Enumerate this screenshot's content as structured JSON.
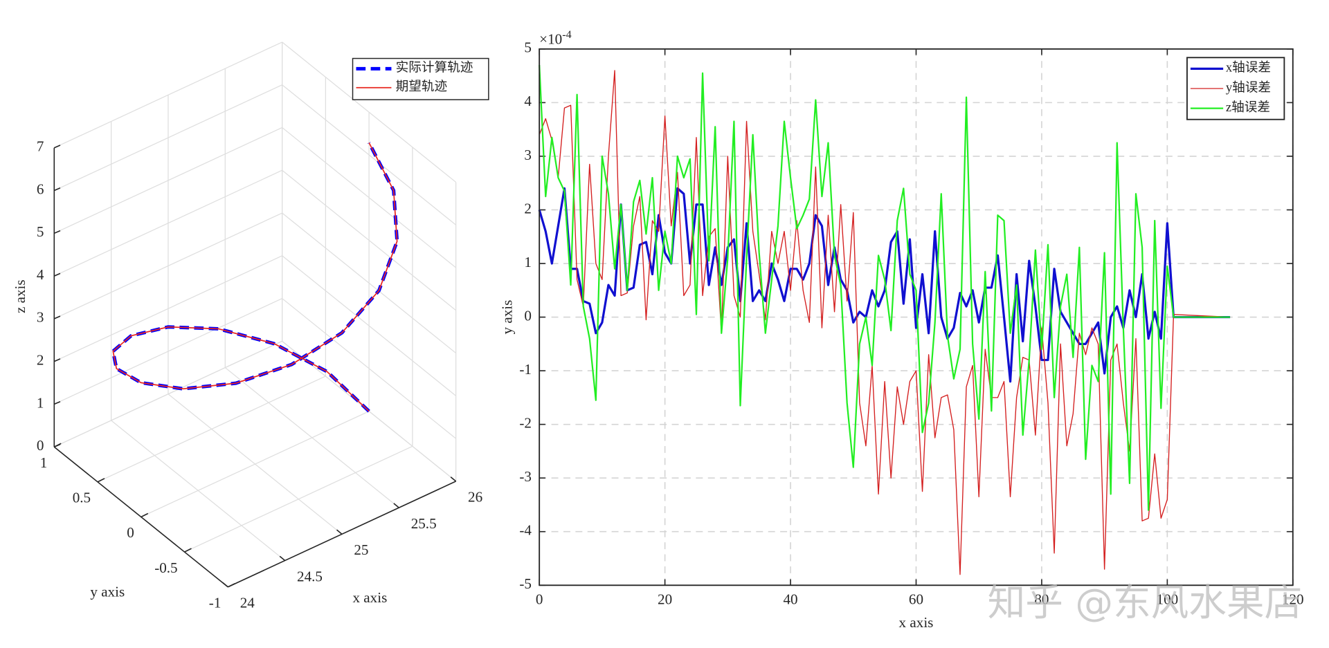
{
  "watermark": "知乎 @东风水果店",
  "chart_data": [
    {
      "type": "line3d",
      "xlabel": "x axis",
      "ylabel": "y axis",
      "zlabel": "z axis",
      "xlim": [
        24,
        26
      ],
      "ylim": [
        -1,
        1
      ],
      "zlim": [
        0,
        7
      ],
      "xticks": [
        24,
        24.5,
        25,
        25.5,
        26
      ],
      "yticks": [
        -1,
        -0.5,
        0,
        0.5,
        1
      ],
      "zticks": [
        0,
        1,
        2,
        3,
        4,
        5,
        6,
        7
      ],
      "grid": true,
      "legend": "upper right",
      "series": [
        {
          "name": "实际计算轨迹",
          "color": "#0000ff",
          "line_style": "dashed",
          "x": [
            26,
            25.924,
            25.707,
            25.383,
            25,
            24.617,
            24.293,
            24.076,
            24,
            24.076,
            24.293,
            24.617,
            25,
            25.383,
            25.707,
            25.924,
            26
          ],
          "y": [
            0,
            0.383,
            0.707,
            0.924,
            1,
            0.924,
            0.707,
            0.383,
            0,
            -0.383,
            -0.707,
            -0.924,
            -1,
            -0.924,
            -0.707,
            -0.383,
            0
          ],
          "z": [
            0,
            0.393,
            0.785,
            1.178,
            1.571,
            1.963,
            2.356,
            2.749,
            3.142,
            3.534,
            3.927,
            4.32,
            4.712,
            5.105,
            5.498,
            5.89,
            6.283
          ]
        },
        {
          "name": "期望轨迹",
          "color": "#e8261f",
          "line_style": "solid",
          "x": [
            26,
            25.924,
            25.707,
            25.383,
            25,
            24.617,
            24.293,
            24.076,
            24,
            24.076,
            24.293,
            24.617,
            25,
            25.383,
            25.707,
            25.924,
            26
          ],
          "y": [
            0,
            0.383,
            0.707,
            0.924,
            1,
            0.924,
            0.707,
            0.383,
            0,
            -0.383,
            -0.707,
            -0.924,
            -1,
            -0.924,
            -0.707,
            -0.383,
            0
          ],
          "z": [
            0,
            0.393,
            0.785,
            1.178,
            1.571,
            1.963,
            2.356,
            2.749,
            3.142,
            3.534,
            3.927,
            4.32,
            4.712,
            5.105,
            5.498,
            5.89,
            6.283
          ]
        }
      ]
    },
    {
      "type": "line",
      "xlabel": "x axis",
      "ylabel": "y axis",
      "y_multiplier": {
        "base": "×10",
        "exponent": "-4"
      },
      "xlim": [
        0,
        120
      ],
      "ylim": [
        -5,
        5
      ],
      "xticks": [
        0,
        20,
        40,
        60,
        80,
        100,
        120
      ],
      "yticks": [
        -5,
        -4,
        -3,
        -2,
        -1,
        0,
        1,
        2,
        3,
        4,
        5
      ],
      "grid": true,
      "legend": "upper right",
      "x": [
        0,
        1,
        2,
        3,
        4,
        5,
        6,
        7,
        8,
        9,
        10,
        11,
        12,
        13,
        14,
        15,
        16,
        17,
        18,
        19,
        20,
        21,
        22,
        23,
        24,
        25,
        26,
        27,
        28,
        29,
        30,
        31,
        32,
        33,
        34,
        35,
        36,
        37,
        38,
        39,
        40,
        41,
        42,
        43,
        44,
        45,
        46,
        47,
        48,
        49,
        50,
        51,
        52,
        53,
        54,
        55,
        56,
        57,
        58,
        59,
        60,
        61,
        62,
        63,
        64,
        65,
        66,
        67,
        68,
        69,
        70,
        71,
        72,
        73,
        74,
        75,
        76,
        77,
        78,
        79,
        80,
        81,
        82,
        83,
        84,
        85,
        86,
        87,
        88,
        89,
        90,
        91,
        92,
        93,
        94,
        95,
        96,
        97,
        98,
        99,
        100,
        101,
        110
      ],
      "series": [
        {
          "name": "x轴误差",
          "color": "#1010d0",
          "width": 2.6,
          "values": [
            2.0,
            1.6,
            1.0,
            1.7,
            2.4,
            0.9,
            0.9,
            0.3,
            0.25,
            -0.3,
            -0.1,
            0.6,
            0.4,
            2.1,
            0.5,
            0.55,
            1.35,
            1.4,
            0.8,
            1.9,
            1.2,
            1.0,
            2.4,
            2.3,
            1.0,
            2.1,
            2.1,
            0.6,
            1.3,
            0.6,
            1.3,
            1.45,
            0.3,
            1.75,
            0.3,
            0.5,
            0.3,
            1.0,
            0.7,
            0.3,
            0.9,
            0.9,
            0.7,
            1.0,
            1.9,
            1.7,
            0.6,
            1.3,
            0.7,
            0.5,
            -0.1,
            0.1,
            0.0,
            0.5,
            0.2,
            0.5,
            1.4,
            1.6,
            0.25,
            1.45,
            -0.2,
            0.8,
            -0.3,
            1.6,
            0.0,
            -0.4,
            -0.2,
            0.45,
            0.2,
            0.5,
            -0.1,
            0.55,
            0.55,
            1.15,
            0.0,
            -1.2,
            0.8,
            -0.45,
            1.05,
            0.2,
            -0.8,
            -0.8,
            0.9,
            0.1,
            -0.1,
            -0.3,
            -0.5,
            -0.5,
            -0.3,
            -0.1,
            -1.05,
            0.0,
            0.2,
            -0.2,
            0.5,
            0.0,
            0.8,
            -0.4,
            0.1,
            -0.4,
            1.75,
            0.0,
            0.0
          ]
        },
        {
          "name": "y轴误差",
          "color": "#d42020",
          "width": 1.1,
          "values": [
            3.4,
            3.7,
            3.3,
            2.6,
            3.9,
            3.95,
            0.7,
            0.2,
            2.85,
            1.0,
            0.7,
            3.0,
            4.6,
            0.4,
            0.45,
            1.7,
            2.25,
            -0.05,
            1.8,
            1.6,
            3.75,
            1.7,
            2.7,
            0.4,
            0.6,
            3.35,
            0.4,
            1.5,
            1.65,
            -0.3,
            3.0,
            0.4,
            0.0,
            3.65,
            1.6,
            0.8,
            -0.05,
            1.6,
            1.0,
            1.6,
            0.5,
            1.8,
            0.5,
            -0.1,
            2.8,
            -0.2,
            1.9,
            0.1,
            2.1,
            0.3,
            1.95,
            -1.6,
            -2.4,
            -0.9,
            -3.3,
            -1.2,
            -3.0,
            -1.3,
            -2.0,
            -1.2,
            -1.0,
            -3.25,
            -0.7,
            -2.25,
            -1.5,
            -1.45,
            -2.1,
            -4.8,
            -1.3,
            -0.9,
            -3.35,
            -0.6,
            -1.5,
            -1.5,
            -1.2,
            -3.35,
            -1.5,
            -0.75,
            -0.8,
            -2.2,
            -0.2,
            -1.6,
            -4.4,
            -0.5,
            -2.4,
            -1.8,
            -0.3,
            -0.7,
            -0.2,
            -0.5,
            -4.7,
            -0.8,
            -0.5,
            -1.6,
            -2.5,
            -0.4,
            -3.8,
            -3.75,
            -2.55,
            -3.75,
            -3.4,
            0.05,
            0.0
          ]
        },
        {
          "name": "z轴误差",
          "color": "#22ee22",
          "width": 1.8,
          "values": [
            4.7,
            2.25,
            3.35,
            2.6,
            2.35,
            0.6,
            4.15,
            0.2,
            -0.4,
            -1.55,
            3.0,
            2.3,
            0.9,
            2.1,
            0.5,
            2.15,
            2.55,
            1.55,
            2.6,
            0.5,
            1.6,
            1.0,
            3.0,
            2.6,
            2.95,
            0.05,
            4.55,
            1.05,
            3.55,
            -0.3,
            1.1,
            3.65,
            -1.65,
            1.1,
            3.4,
            1.2,
            -0.3,
            0.7,
            1.7,
            3.65,
            2.6,
            1.65,
            1.9,
            2.2,
            4.05,
            2.25,
            3.25,
            1.15,
            0.6,
            -1.6,
            -2.8,
            -0.5,
            0.0,
            -0.9,
            1.15,
            0.7,
            -0.25,
            1.8,
            2.4,
            0.8,
            0.5,
            -2.15,
            -1.6,
            -0.1,
            2.3,
            -0.35,
            -1.15,
            -0.6,
            4.1,
            -0.5,
            -1.9,
            0.85,
            -1.75,
            1.9,
            1.8,
            -0.3,
            0.6,
            -2.2,
            -0.8,
            1.25,
            -0.6,
            1.35,
            -1.5,
            0.2,
            0.8,
            -0.75,
            1.3,
            -2.65,
            -0.9,
            -1.2,
            1.2,
            -3.3,
            3.25,
            -0.2,
            -3.1,
            2.3,
            1.3,
            -3.6,
            1.8,
            -1.7,
            0.95,
            0.0,
            0.0
          ]
        }
      ]
    }
  ]
}
